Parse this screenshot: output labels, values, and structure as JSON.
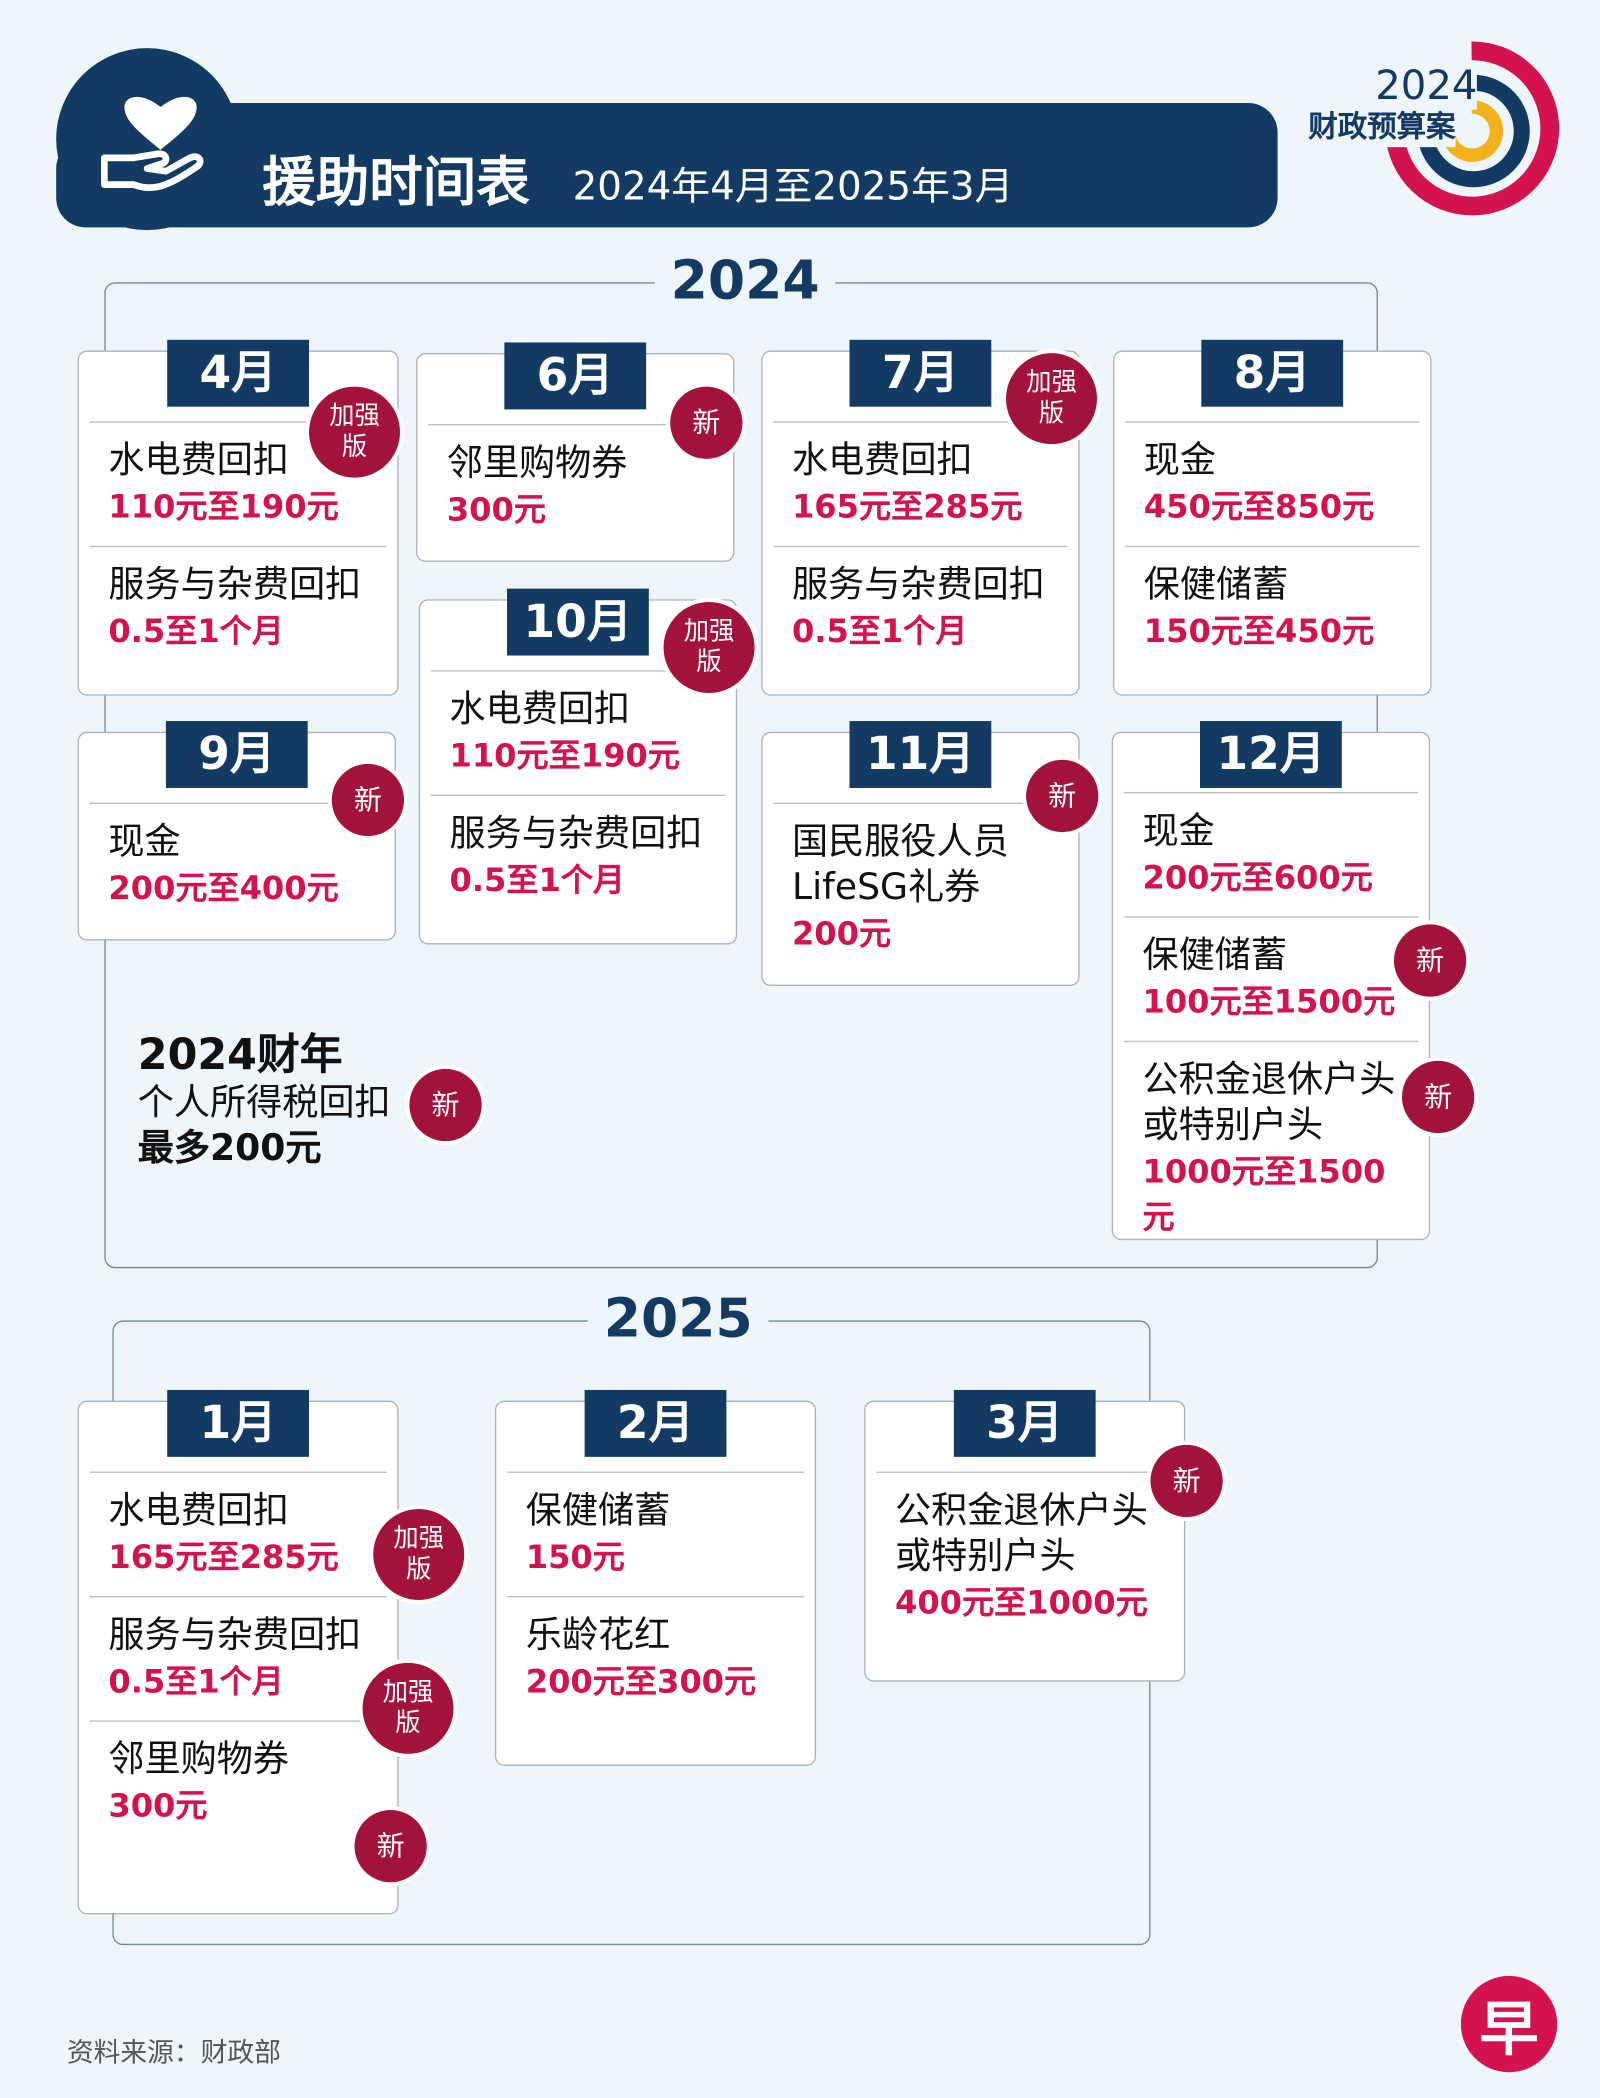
{
  "header": {
    "title": "援助时间表",
    "subtitle": "2024年4月至2025年3月"
  },
  "logo": {
    "year": "2024",
    "text": "财政预算案"
  },
  "sections": [
    {
      "year": "2024",
      "cards": [
        {
          "month": "4月",
          "items": [
            {
              "name": "水电费回扣",
              "amount": "110元至190元",
              "badge": "加强版"
            },
            {
              "name": "服务与杂费回扣",
              "amount": "0.5至1个月"
            }
          ]
        },
        {
          "month": "6月",
          "items": [
            {
              "name": "邻里购物券",
              "amount": "300元",
              "badge": "新"
            }
          ]
        },
        {
          "month": "7月",
          "items": [
            {
              "name": "水电费回扣",
              "amount": "165元至285元",
              "badge": "加强版"
            },
            {
              "name": "服务与杂费回扣",
              "amount": "0.5至1个月"
            }
          ]
        },
        {
          "month": "8月",
          "items": [
            {
              "name": "现金",
              "amount": "450元至850元"
            },
            {
              "name": "保健储蓄",
              "amount": "150元至450元"
            }
          ]
        },
        {
          "month": "9月",
          "items": [
            {
              "name": "现金",
              "amount": "200元至400元",
              "badge": "新"
            }
          ]
        },
        {
          "month": "10月",
          "items": [
            {
              "name": "水电费回扣",
              "amount": "110元至190元",
              "badge": "加强版"
            },
            {
              "name": "服务与杂费回扣",
              "amount": "0.5至1个月"
            }
          ]
        },
        {
          "month": "11月",
          "items": [
            {
              "name": "国民服役人员LifeSG礼券",
              "amount": "200元",
              "badge": "新"
            }
          ]
        },
        {
          "month": "12月",
          "items": [
            {
              "name": "现金",
              "amount": "200元至600元"
            },
            {
              "name": "保健储蓄",
              "amount": "100元至1500元",
              "badge": "新"
            },
            {
              "name": "公积金退休户头或特别户头",
              "amount": "1000元至1500元",
              "badge": "新"
            }
          ]
        }
      ],
      "note": {
        "title": "2024财年",
        "name": "个人所得税回扣",
        "amount": "最多200元",
        "badge": "新"
      }
    },
    {
      "year": "2025",
      "cards": [
        {
          "month": "1月",
          "items": [
            {
              "name": "水电费回扣",
              "amount": "165元至285元",
              "badge": "加强版"
            },
            {
              "name": "服务与杂费回扣",
              "amount": "0.5至1个月",
              "badge": "加强版"
            },
            {
              "name": "邻里购物券",
              "amount": "300元",
              "badge": "新"
            }
          ]
        },
        {
          "month": "2月",
          "items": [
            {
              "name": "保健储蓄",
              "amount": "150元"
            },
            {
              "name": "乐龄花红",
              "amount": "200元至300元"
            }
          ]
        },
        {
          "month": "3月",
          "items": [
            {
              "name": "公积金退休户头或特别户头",
              "amount": "400元至1000元",
              "badge": "新"
            }
          ]
        }
      ]
    }
  ],
  "source": "资料来源：财政部",
  "brand": "早"
}
